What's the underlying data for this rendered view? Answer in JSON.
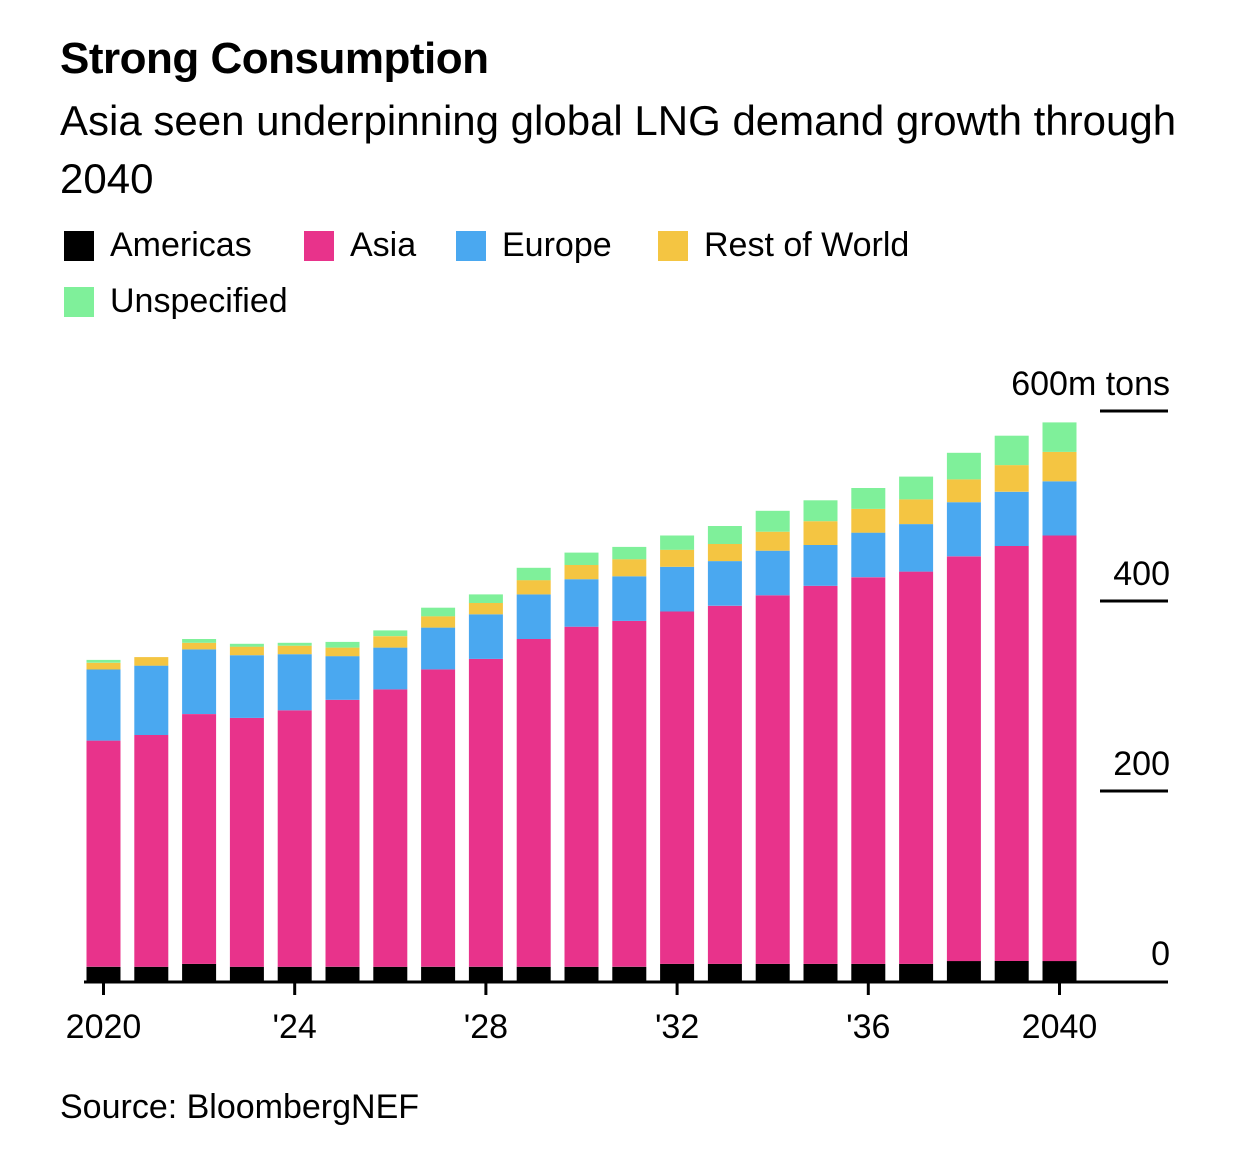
{
  "title": "Strong Consumption",
  "subtitle": "Asia seen underpinning global LNG demand growth through 2040",
  "source": "Source: BloombergNEF",
  "legend": [
    {
      "name": "Americas",
      "color": "#000000"
    },
    {
      "name": "Asia",
      "color": "#e8338b"
    },
    {
      "name": "Europe",
      "color": "#4aa8f0"
    },
    {
      "name": "Rest of World",
      "color": "#f4c542"
    },
    {
      "name": "Unspecified",
      "color": "#7ff09a"
    }
  ],
  "chart_data": {
    "type": "bar",
    "stacked": true,
    "unit": "600m tons",
    "ylim": [
      0,
      600
    ],
    "y_ticks": [
      {
        "value": 0,
        "label": "0"
      },
      {
        "value": 200,
        "label": "200"
      },
      {
        "value": 400,
        "label": "400"
      },
      {
        "value": 600,
        "label": "600m tons"
      }
    ],
    "x_ticks": [
      {
        "year": 2020,
        "label": "2020"
      },
      {
        "year": 2024,
        "label": "'24"
      },
      {
        "year": 2028,
        "label": "'28"
      },
      {
        "year": 2032,
        "label": "'32"
      },
      {
        "year": 2036,
        "label": "'36"
      },
      {
        "year": 2040,
        "label": "2040"
      }
    ],
    "categories": [
      2020,
      2021,
      2022,
      2023,
      2024,
      2025,
      2026,
      2027,
      2028,
      2029,
      2030,
      2031,
      2032,
      2033,
      2034,
      2035,
      2036,
      2037,
      2038,
      2039,
      2040
    ],
    "series": [
      {
        "name": "Americas",
        "color": "#000000",
        "values": [
          15,
          15,
          18,
          15,
          15,
          15,
          15,
          15,
          15,
          15,
          15,
          15,
          18,
          18,
          18,
          18,
          18,
          18,
          21,
          21,
          21
        ]
      },
      {
        "name": "Asia",
        "color": "#e8338b",
        "values": [
          238,
          244,
          263,
          262,
          270,
          281,
          292,
          313,
          324,
          345,
          358,
          364,
          371,
          377,
          388,
          398,
          407,
          413,
          426,
          437,
          448
        ]
      },
      {
        "name": "Europe",
        "color": "#4aa8f0",
        "values": [
          75,
          73,
          68,
          66,
          59,
          46,
          44,
          44,
          47,
          47,
          50,
          47,
          47,
          47,
          47,
          43,
          47,
          50,
          57,
          57,
          57
        ]
      },
      {
        "name": "Rest of World",
        "color": "#f4c542",
        "values": [
          7,
          9,
          7,
          9,
          9,
          9,
          12,
          12,
          12,
          15,
          15,
          18,
          18,
          18,
          20,
          25,
          25,
          26,
          24,
          28,
          31
        ]
      },
      {
        "name": "Unspecified",
        "color": "#7ff09a",
        "values": [
          3,
          0,
          4,
          3,
          3,
          6,
          6,
          9,
          9,
          13,
          13,
          13,
          15,
          19,
          22,
          22,
          22,
          24,
          28,
          31,
          31
        ]
      }
    ]
  }
}
